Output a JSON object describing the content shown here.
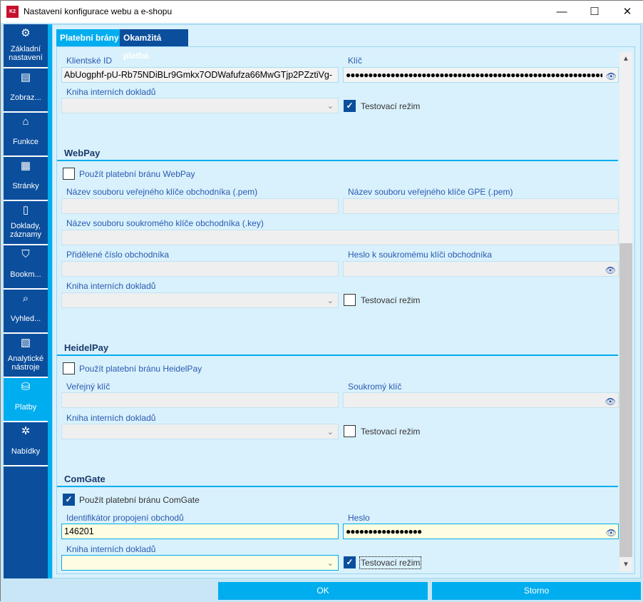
{
  "window": {
    "title": "Nastavení konfigurace webu a e-shopu",
    "logo": "K2",
    "minimize": "—",
    "maximize": "☐",
    "close": "✕"
  },
  "sidebar": {
    "items": [
      {
        "label": "Základní nastavení",
        "icon": "gear-icon",
        "glyph": "⚙"
      },
      {
        "label": "Zobraz...",
        "icon": "list-icon",
        "glyph": "▤"
      },
      {
        "label": "Funkce",
        "icon": "tag-icon",
        "glyph": "⌂"
      },
      {
        "label": "Stránky",
        "icon": "page-icon",
        "glyph": "▦"
      },
      {
        "label": "Doklady, záznamy",
        "icon": "document-icon",
        "glyph": "▯"
      },
      {
        "label": "Bookm...",
        "icon": "bookmark-icon",
        "glyph": "⛉"
      },
      {
        "label": "Vyhled...",
        "icon": "search-icon",
        "glyph": "⌕"
      },
      {
        "label": "Analytické nástroje",
        "icon": "chart-icon",
        "glyph": "▧"
      },
      {
        "label": "Platby",
        "icon": "payment-icon",
        "glyph": "⛁",
        "active": true
      },
      {
        "label": "Nabídky",
        "icon": "discount-icon",
        "glyph": "✲"
      }
    ]
  },
  "tabs": [
    {
      "label": "Platební brány",
      "active": true
    },
    {
      "label": "Okamžitá platba"
    }
  ],
  "top": {
    "client_id_label": "Klientské ID",
    "client_id": "AbUogphf-pU-Rb75NDiBLr9Gmkx7ODWafufza66MwGTjp2PZztiVg-",
    "key_label": "Klíč",
    "key": "●●●●●●●●●●●●●●●●●●●●●●●●●●●●●●●●●●●●●●●●●●●●●●●●●●●●●●●●●●●●●●●●●",
    "book_label": "Kniha interních dokladů",
    "book": "",
    "test_label": "Testovací režim",
    "test_checked": true
  },
  "webpay": {
    "title": "WebPay",
    "use_label": "Použít platební bránu WebPay",
    "use_checked": false,
    "merchant_pub_label": "Název souboru veřejného klíče obchodníka (.pem)",
    "gpe_pub_label": "Název souboru veřejného klíče GPE (.pem)",
    "merchant_priv_label": "Název souboru soukromého klíče obchodníka (.key)",
    "merchant_no_label": "Přidělené číslo obchodníka",
    "priv_pw_label": "Heslo k soukromému klíči obchodníka",
    "book_label": "Kniha interních dokladů",
    "test_label": "Testovací režim",
    "test_checked": false
  },
  "heidelpay": {
    "title": "HeidelPay",
    "use_label": "Použít platební bránu HeidelPay",
    "use_checked": false,
    "public_key_label": "Veřejný klíč",
    "private_key_label": "Soukromý klíč",
    "book_label": "Kniha interních dokladů",
    "test_label": "Testovací režim",
    "test_checked": false
  },
  "comgate": {
    "title": "ComGate",
    "use_label": "Použít platební bránu ComGate",
    "use_checked": true,
    "id_label": "Identifikátor propojení obchodů",
    "id": "146201",
    "pw_label": "Heslo",
    "pw": "●●●●●●●●●●●●●●●●●",
    "book_label": "Kniha interních dokladů",
    "test_label": "Testovací režim",
    "test_checked": true
  },
  "buttons": {
    "ok": "OK",
    "cancel": "Storno"
  },
  "colors": {
    "accent": "#00adef",
    "sidebar": "#0b4e9c",
    "panel": "#d9f1fc"
  }
}
